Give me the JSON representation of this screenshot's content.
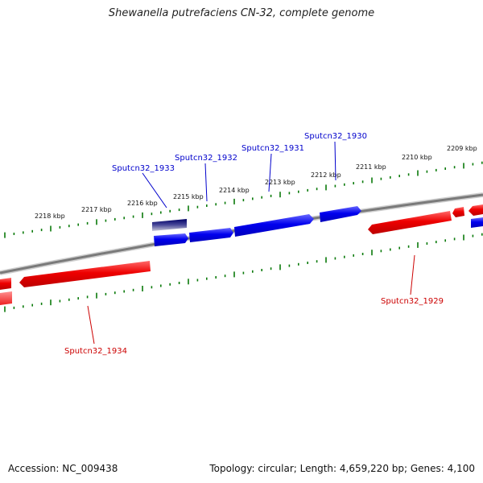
{
  "title": "Shewanella putrefaciens CN-32, complete genome",
  "accession": "Accession: NC_009438",
  "summary": "Topology: circular; Length: 4,659,220 bp; Genes: 4,100",
  "colors": {
    "backbone": "#7a7a7a",
    "tick": "#0a7a0a",
    "forward_gene": "#0000ee",
    "reverse_gene": "#ee0000",
    "forward_label": "#0000cc",
    "reverse_label": "#cc0000"
  },
  "scale_labels": [
    "2218 kbp",
    "2217 kbp",
    "2216 kbp",
    "2215 kbp",
    "2214 kbp",
    "2213 kbp",
    "2212 kbp",
    "2211 kbp",
    "2210 kbp",
    "2209 kbp"
  ],
  "gene_labels": {
    "forward": [
      "Sputcn32_1933",
      "Sputcn32_1932",
      "Sputcn32_1931",
      "Sputcn32_1930"
    ],
    "reverse": [
      "Sputcn32_1934",
      "Sputcn32_1929"
    ]
  }
}
